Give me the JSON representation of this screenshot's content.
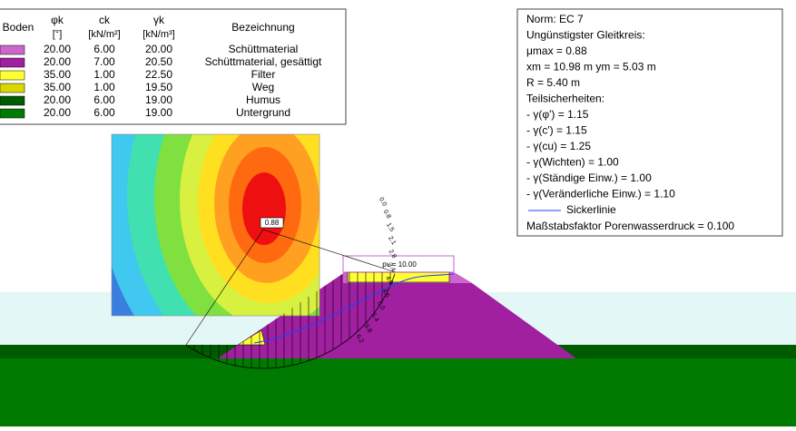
{
  "legend": {
    "headers": [
      {
        "top": "Boden",
        "bottom": null
      },
      {
        "top": "φk",
        "bottom": "[°]"
      },
      {
        "top": "ck",
        "bottom": "[kN/m²]"
      },
      {
        "top": "γk",
        "bottom": "[kN/m³]"
      },
      {
        "top": "Bezeichnung",
        "bottom": null
      }
    ],
    "rows": [
      {
        "color": "#cc66cc",
        "phi": "20.00",
        "c": "6.00",
        "gamma": "20.00",
        "name": "Schüttmaterial"
      },
      {
        "color": "#a020a0",
        "phi": "20.00",
        "c": "7.00",
        "gamma": "20.50",
        "name": "Schüttmaterial, gesättigt"
      },
      {
        "color": "#ffff33",
        "phi": "35.00",
        "c": "1.00",
        "gamma": "22.50",
        "name": "Filter"
      },
      {
        "color": "#d8d800",
        "phi": "35.00",
        "c": "1.00",
        "gamma": "19.50",
        "name": "Weg"
      },
      {
        "color": "#005a00",
        "phi": "20.00",
        "c": "6.00",
        "gamma": "19.00",
        "name": "Humus"
      },
      {
        "color": "#007a00",
        "phi": "20.00",
        "c": "6.00",
        "gamma": "19.00",
        "name": "Untergrund"
      }
    ]
  },
  "info": {
    "lines": [
      "Norm:  EC 7",
      "Ungünstigster Gleitkreis:",
      "μmax = 0.88",
      "xm = 10.98 m   ym = 5.03 m",
      "R = 5.40 m",
      "Teilsicherheiten:",
      " - γ(φ') = 1.15",
      " - γ(c') = 1.15",
      " - γ(cu) = 1.25",
      " - γ(Wichten) = 1.00",
      " - γ(Ständige Einw.) = 1.00",
      " - γ(Veränderliche Einw.) = 1.10"
    ],
    "seepage_label": "Sickerlinie",
    "scale_factor": "Maßstabsfaktor Porenwasserdruck = 0.100"
  },
  "contour": {
    "min_label": "0.88"
  },
  "load": {
    "label": "pv = 10.00"
  },
  "slice_labels": [
    "0.0",
    "0.8",
    "1.5",
    "2.1",
    "2.8",
    "3.4",
    "4.0",
    "4.5",
    "5.0",
    "5.4",
    "5.8",
    "6.2"
  ]
}
